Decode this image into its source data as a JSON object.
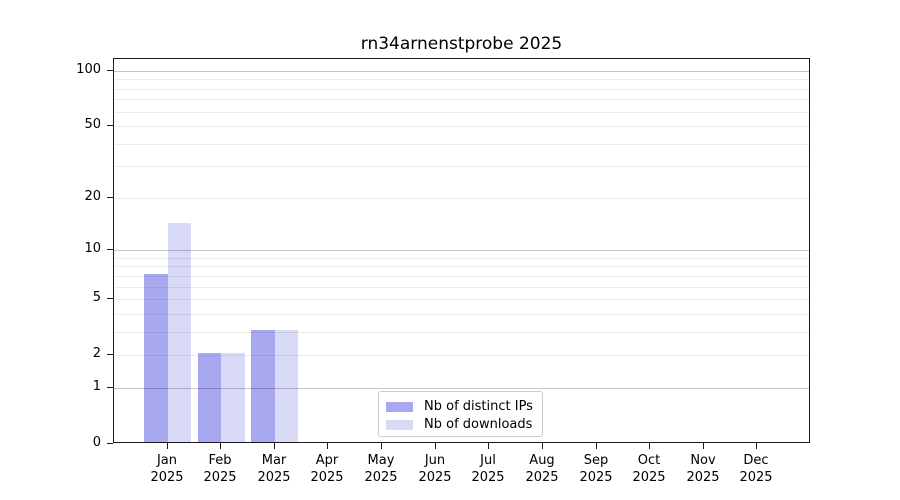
{
  "chart_data": {
    "type": "bar",
    "title": "rn34arnenstprobe 2025",
    "categories": [
      "Jan",
      "Feb",
      "Mar",
      "Apr",
      "May",
      "Jun",
      "Jul",
      "Aug",
      "Sep",
      "Oct",
      "Nov",
      "Dec"
    ],
    "category_year": "2025",
    "series": [
      {
        "name": "Nb of distinct IPs",
        "color": "#a8a8f0",
        "values": [
          7,
          2,
          3,
          0,
          0,
          0,
          0,
          0,
          0,
          0,
          0,
          0
        ]
      },
      {
        "name": "Nb of downloads",
        "color": "#d9d9f8",
        "values": [
          14,
          2,
          3,
          0,
          0,
          0,
          0,
          0,
          0,
          0,
          0,
          0
        ]
      }
    ],
    "yscale": "log1p",
    "ylim": [
      0,
      100
    ],
    "ytick_labels": [
      100,
      50,
      20,
      10,
      5,
      2,
      1,
      0
    ],
    "major_gridlines": [
      100,
      10,
      1
    ],
    "minor_gridlines": [
      90,
      80,
      70,
      60,
      50,
      40,
      30,
      20,
      9,
      8,
      7,
      6,
      5,
      4,
      3,
      2
    ],
    "grid": true,
    "legend_position": "lower center"
  }
}
